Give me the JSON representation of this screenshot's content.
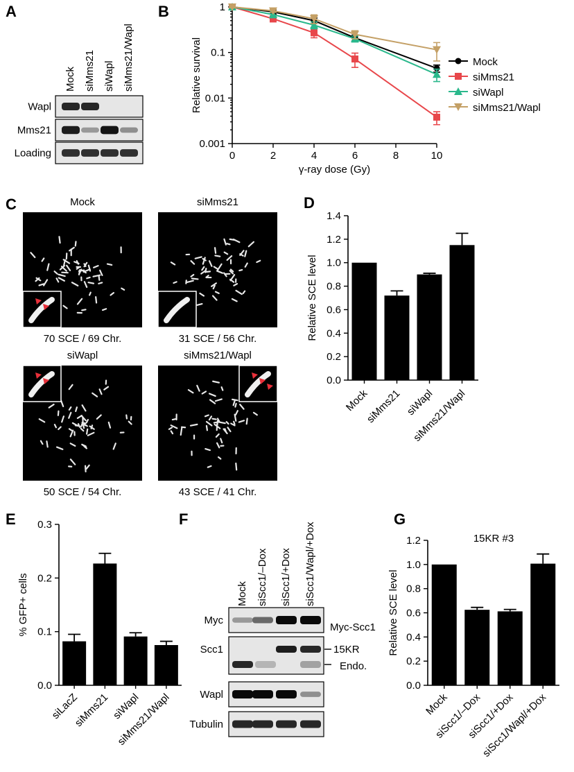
{
  "panels": {
    "A": {
      "label": "A",
      "lanes": [
        "Mock",
        "siMms21",
        "siWapl",
        "siMms21/Wapl"
      ],
      "rows": [
        {
          "name": "Wapl",
          "bands": [
            0.85,
            0.85,
            0.0,
            0.0
          ]
        },
        {
          "name": "Mms21",
          "bands": [
            0.9,
            0.25,
            0.95,
            0.3
          ]
        },
        {
          "name": "Loading",
          "bands": [
            0.8,
            0.8,
            0.8,
            0.8
          ]
        }
      ]
    },
    "B": {
      "label": "B"
    },
    "C": {
      "label": "C",
      "images": [
        {
          "title": "Mock",
          "caption": "70 SCE / 69 Chr.",
          "inset": "bottom-left",
          "arrows": 2
        },
        {
          "title": "siMms21",
          "caption": "31 SCE / 56 Chr.",
          "inset": "bottom-left",
          "arrows": 0
        },
        {
          "title": "siWapl",
          "caption": "50 SCE / 54 Chr.",
          "inset": "top-left",
          "arrows": 2
        },
        {
          "title": "siMms21/Wapl",
          "caption": "43 SCE / 41 Chr.",
          "inset": "top-right",
          "arrows": 3
        }
      ]
    },
    "D": {
      "label": "D"
    },
    "E": {
      "label": "E"
    },
    "F": {
      "label": "F",
      "lanes": [
        "Mock",
        "siScc1/–Dox",
        "siScc1/+Dox",
        "siScc1/Wapl/+Dox"
      ],
      "rows": [
        {
          "name": "Myc",
          "bands": [
            0.25,
            0.5,
            1.0,
            1.0
          ]
        },
        {
          "name": "Scc1",
          "bands": [
            0.9,
            0.1,
            0.9,
            0.85
          ]
        },
        {
          "name": "Wapl",
          "bands": [
            1.0,
            1.0,
            1.0,
            0.3
          ]
        },
        {
          "name": "Tubulin",
          "bands": [
            0.85,
            0.85,
            0.85,
            0.85
          ]
        }
      ],
      "annotations": {
        "myc_scc1": "Myc-Scc1",
        "kr15": "15KR",
        "endo": "Endo."
      }
    },
    "G": {
      "label": "G"
    }
  },
  "chart_data": [
    {
      "panel": "B",
      "type": "line",
      "xlabel": "γ-ray dose (Gy)",
      "ylabel": "Relative survival",
      "xlim": [
        0,
        10
      ],
      "ylim": [
        0.001,
        1
      ],
      "yscale": "log",
      "x_ticks": [
        0,
        2,
        4,
        6,
        8,
        10
      ],
      "y_ticks": [
        0.001,
        0.01,
        0.1,
        1
      ],
      "y_tick_labels": [
        "0.001",
        "0.01",
        "0.1",
        "1"
      ],
      "legend": "right",
      "series": [
        {
          "name": "Mock",
          "color": "#000000",
          "marker": "circle",
          "x": [
            0,
            2,
            4,
            6,
            10
          ],
          "y": [
            1.0,
            0.78,
            0.5,
            0.21,
            0.045
          ],
          "err": [
            0.04,
            0.08,
            0.07,
            0.03,
            0.008
          ]
        },
        {
          "name": "siMms21",
          "color": "#e8474b",
          "marker": "square",
          "x": [
            0,
            2,
            4,
            6,
            10
          ],
          "y": [
            1.0,
            0.55,
            0.27,
            0.072,
            0.0038
          ],
          "err": [
            0.04,
            0.08,
            0.06,
            0.025,
            0.0012
          ]
        },
        {
          "name": "siWapl",
          "color": "#2bb88c",
          "marker": "triangle",
          "x": [
            0,
            2,
            4,
            6,
            10
          ],
          "y": [
            1.0,
            0.68,
            0.4,
            0.2,
            0.033
          ],
          "err": [
            0.04,
            0.1,
            0.07,
            0.03,
            0.01
          ]
        },
        {
          "name": "siMms21/Wapl",
          "color": "#c4a066",
          "marker": "triangle-down",
          "x": [
            0,
            2,
            4,
            6,
            10
          ],
          "y": [
            1.0,
            0.82,
            0.55,
            0.25,
            0.115
          ],
          "err": [
            0.04,
            0.06,
            0.12,
            0.05,
            0.05
          ]
        }
      ]
    },
    {
      "panel": "D",
      "type": "bar",
      "ylabel": "Relative SCE level",
      "categories": [
        "Mock",
        "siMms21",
        "siWapl",
        "siMms21/Wapl"
      ],
      "values": [
        1.0,
        0.72,
        0.9,
        1.15
      ],
      "errors": [
        0.0,
        0.04,
        0.01,
        0.1
      ],
      "ylim": [
        0,
        1.4
      ],
      "y_ticks": [
        "0.0",
        "0.2",
        "0.4",
        "0.6",
        "0.8",
        "1.0",
        "1.2",
        "1.4"
      ]
    },
    {
      "panel": "E",
      "type": "bar",
      "ylabel": "% GFP+ cells",
      "categories": [
        "siLacZ",
        "siMms21",
        "siWapl",
        "siMms21/Wapl"
      ],
      "values": [
        0.082,
        0.227,
        0.091,
        0.075
      ],
      "errors": [
        0.013,
        0.019,
        0.007,
        0.007
      ],
      "ylim": [
        0,
        0.3
      ],
      "y_ticks": [
        "0.0",
        "0.1",
        "0.2",
        "0.3"
      ]
    },
    {
      "panel": "G",
      "type": "bar",
      "title": "15KR #3",
      "ylabel": "Relative SCE level",
      "categories": [
        "Mock",
        "siScc1/–Dox",
        "siScc1/+Dox",
        "siScc1/Wapl/+Dox"
      ],
      "values": [
        1.0,
        0.625,
        0.612,
        1.007
      ],
      "errors": [
        0.0,
        0.02,
        0.016,
        0.08
      ],
      "ylim": [
        0,
        1.2
      ],
      "y_ticks": [
        "0.0",
        "0.2",
        "0.4",
        "0.6",
        "0.8",
        "1.0",
        "1.2"
      ]
    }
  ]
}
